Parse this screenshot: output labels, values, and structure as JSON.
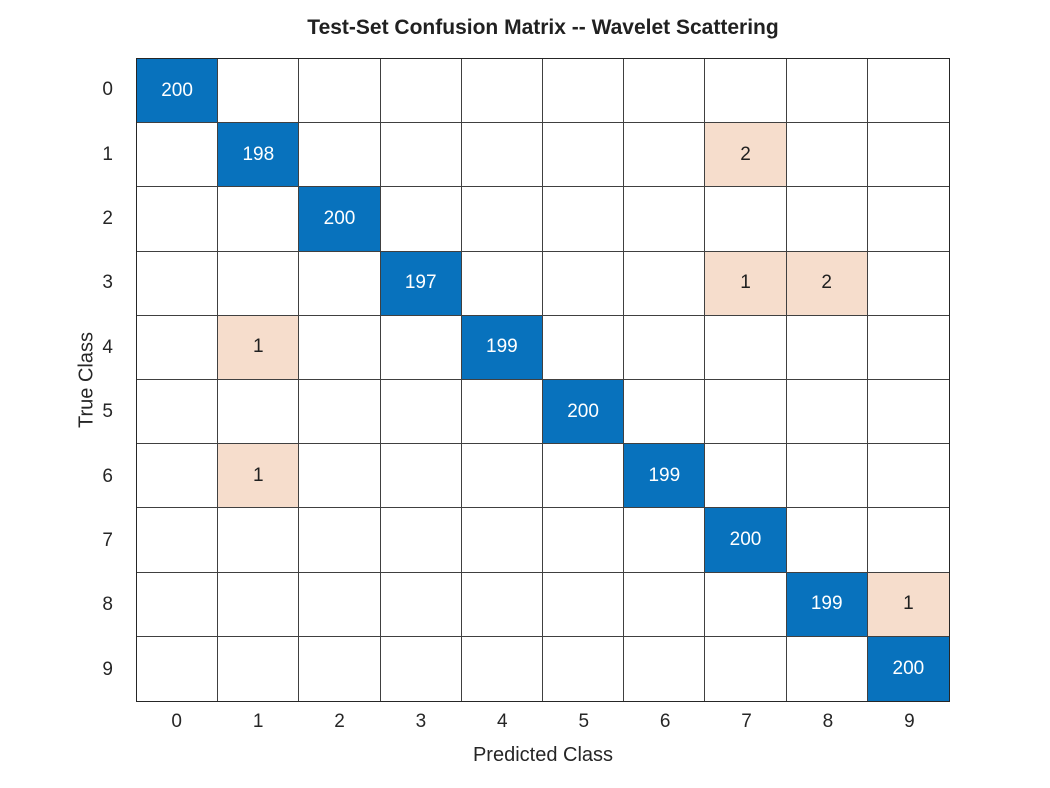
{
  "chart_data": {
    "type": "heatmap",
    "subtype": "confusion-matrix",
    "title": "Test-Set Confusion Matrix -- Wavelet Scattering",
    "xlabel": "Predicted Class",
    "ylabel": "True Class",
    "x_tick_labels": [
      "0",
      "1",
      "2",
      "3",
      "4",
      "5",
      "6",
      "7",
      "8",
      "9"
    ],
    "y_tick_labels": [
      "0",
      "1",
      "2",
      "3",
      "4",
      "5",
      "6",
      "7",
      "8",
      "9"
    ],
    "matrix": [
      [
        200,
        0,
        0,
        0,
        0,
        0,
        0,
        0,
        0,
        0
      ],
      [
        0,
        198,
        0,
        0,
        0,
        0,
        0,
        2,
        0,
        0
      ],
      [
        0,
        0,
        200,
        0,
        0,
        0,
        0,
        0,
        0,
        0
      ],
      [
        0,
        0,
        0,
        197,
        0,
        0,
        0,
        1,
        2,
        0
      ],
      [
        0,
        1,
        0,
        0,
        199,
        0,
        0,
        0,
        0,
        0
      ],
      [
        0,
        0,
        0,
        0,
        0,
        200,
        0,
        0,
        0,
        0
      ],
      [
        0,
        1,
        0,
        0,
        0,
        0,
        199,
        0,
        0,
        0
      ],
      [
        0,
        0,
        0,
        0,
        0,
        0,
        0,
        200,
        0,
        0
      ],
      [
        0,
        0,
        0,
        0,
        0,
        0,
        0,
        0,
        199,
        1
      ],
      [
        0,
        0,
        0,
        0,
        0,
        0,
        0,
        0,
        0,
        200
      ]
    ],
    "zero_cells_rendered_blank": true,
    "grid": true,
    "legend": "none",
    "colors": {
      "diagonal_fill": "#0872BD",
      "diagonal_text": "#FFFFFF",
      "offdiagonal_fill": "#F6DDCC",
      "offdiagonal_text": "#202020",
      "empty_fill": "#FFFFFF",
      "gridline": "#404040",
      "grid_border": "#262626",
      "axis_text": "#262626",
      "title_text": "#212121"
    }
  }
}
